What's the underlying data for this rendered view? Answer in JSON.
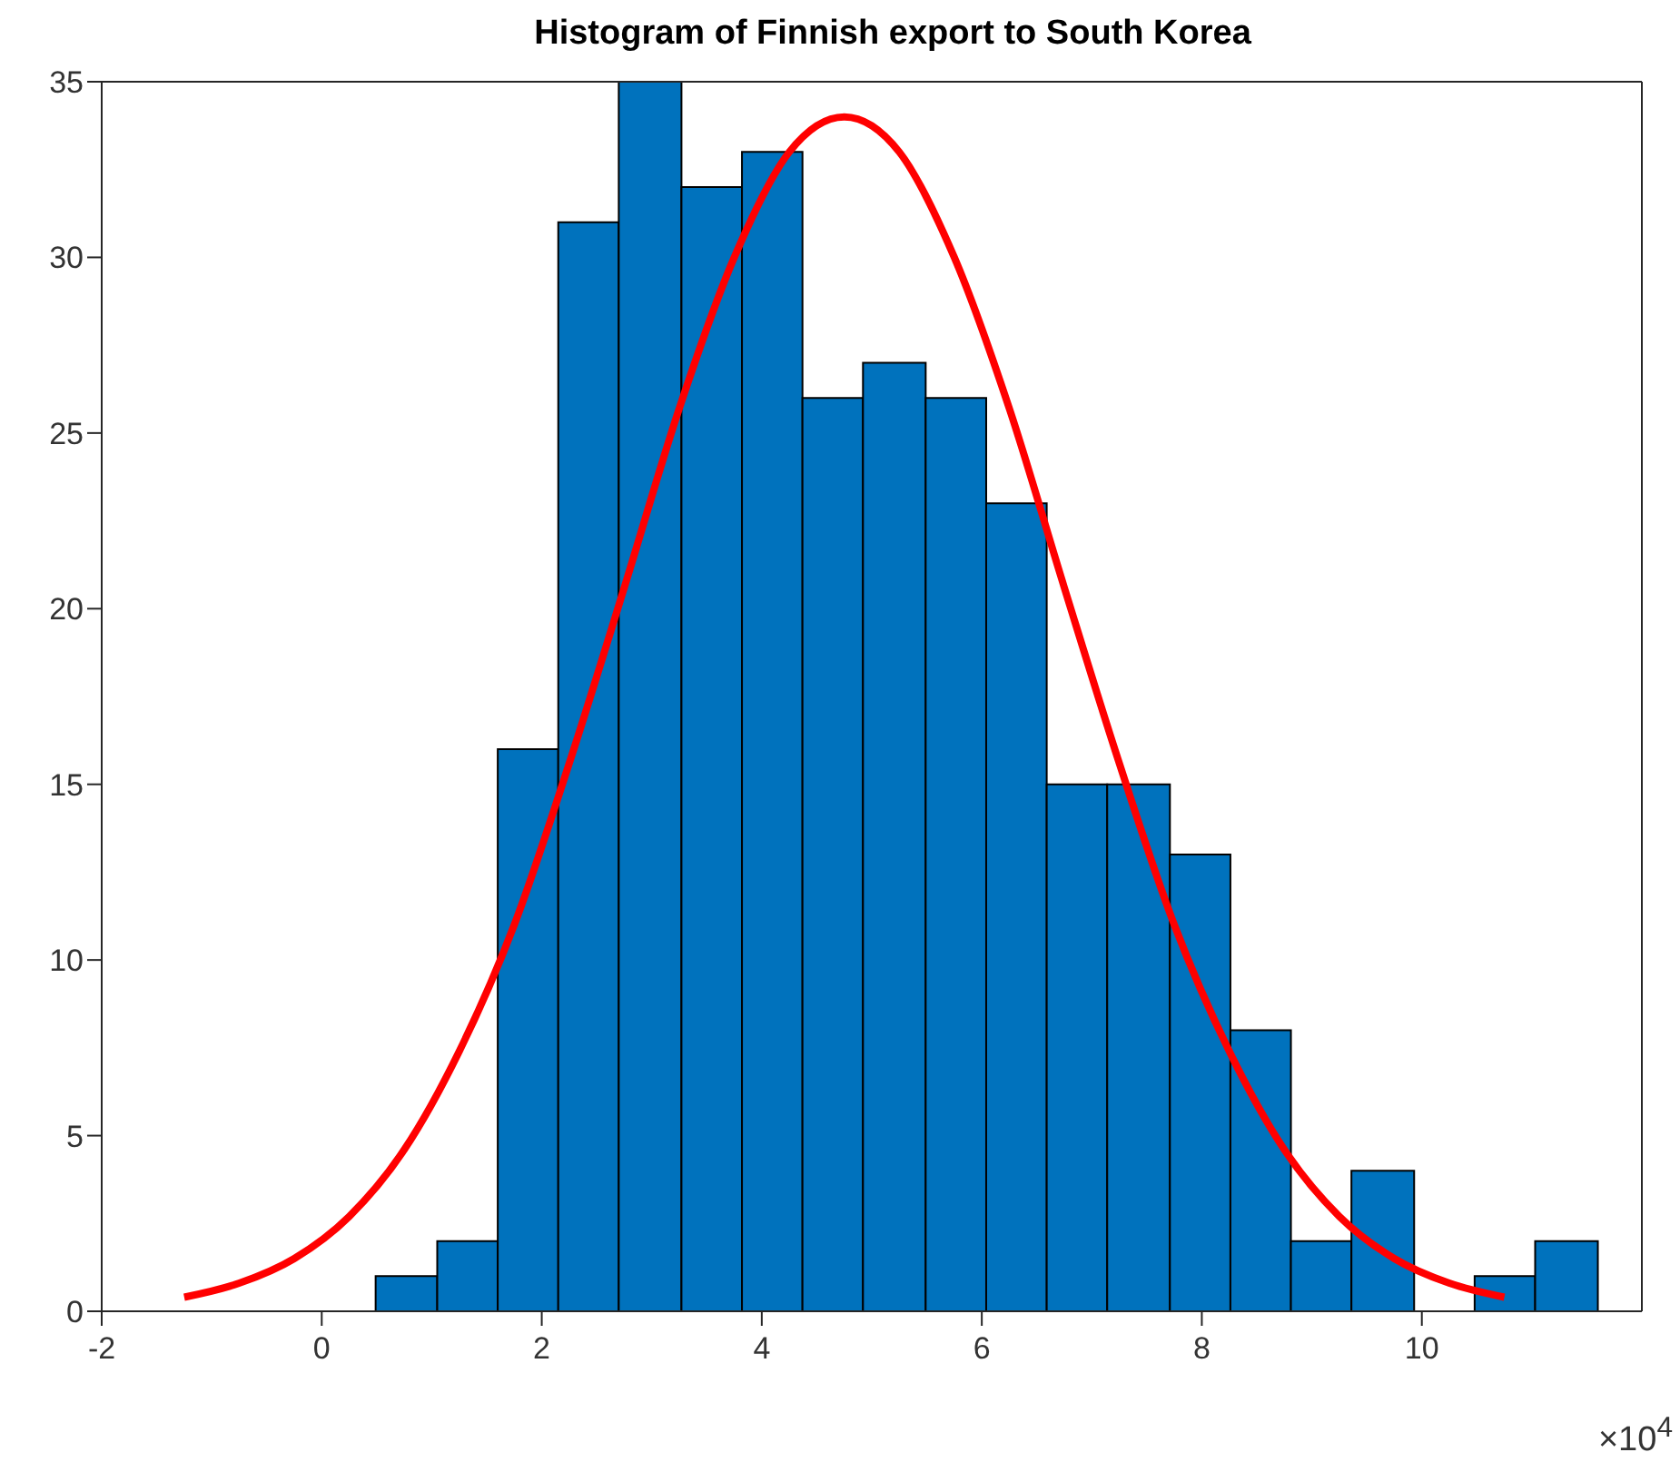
{
  "chart_data": {
    "type": "histogram",
    "title": "Histogram of Finnish export to South Korea",
    "bins": [
      0.49,
      1.05,
      1.6,
      2.15,
      2.7,
      3.27,
      3.82,
      4.37,
      4.92,
      5.49,
      6.04,
      6.59,
      7.14,
      7.71,
      8.26,
      8.81,
      9.36,
      9.93,
      10.48,
      11.03,
      11.6
    ],
    "values": [
      1,
      2,
      16,
      31,
      35,
      32,
      33,
      26,
      27,
      26,
      23,
      15,
      15,
      13,
      8,
      2,
      4,
      0,
      1,
      2
    ],
    "color": "#0072bd",
    "series": [
      {
        "type": "line",
        "color": "#ff0000",
        "x": [
          -1.25,
          -0.75,
          -0.25,
          0.25,
          0.75,
          1.25,
          1.75,
          2.25,
          2.75,
          3.25,
          3.75,
          4.25,
          4.75,
          5.25,
          5.75,
          6.25,
          6.75,
          7.25,
          7.75,
          8.25,
          8.75,
          9.25,
          9.75,
          10.25,
          10.75
        ],
        "values": [
          0.4,
          0.8,
          1.5,
          2.7,
          4.6,
          7.4,
          11,
          15.6,
          20.6,
          25.7,
          30,
          33,
          34,
          33,
          30,
          25.7,
          20.6,
          15.6,
          11,
          7.4,
          4.6,
          2.7,
          1.5,
          0.8,
          0.4
        ]
      }
    ],
    "xlim": [
      -2,
      12
    ],
    "xticks": [
      -2,
      0,
      2,
      4,
      6,
      8,
      10
    ],
    "ylim": [
      0,
      35
    ],
    "yticks": [
      0,
      5,
      10,
      15,
      20,
      25,
      30,
      35
    ],
    "annotations": [
      "×10$^{4}$"
    ],
    "grid": false
  }
}
